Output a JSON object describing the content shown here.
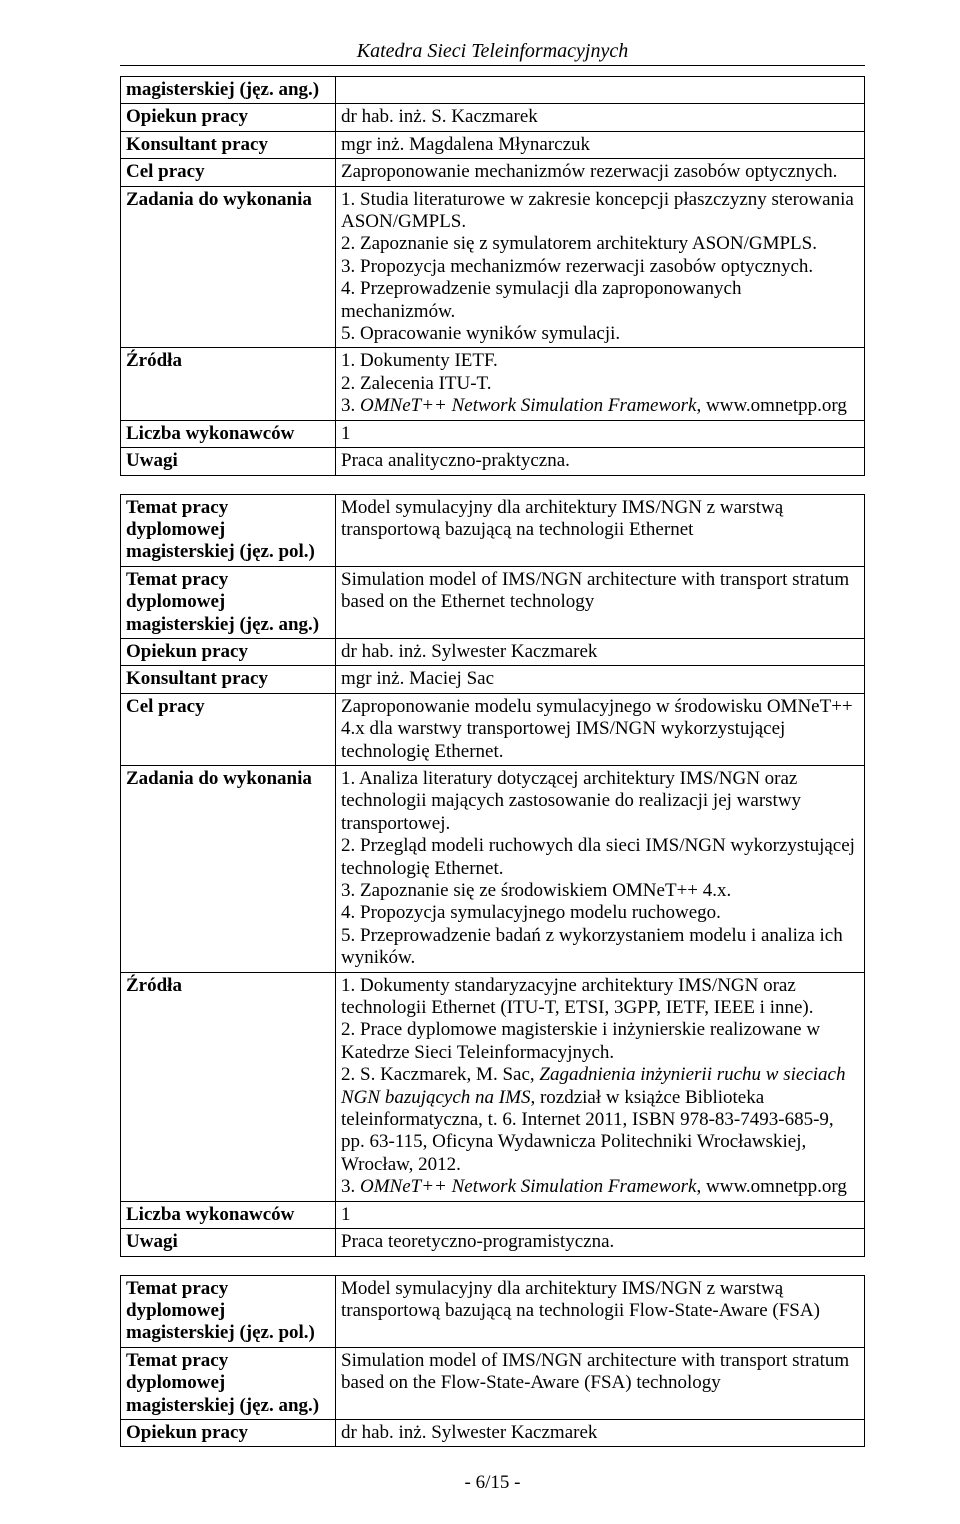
{
  "header": {
    "title": "Katedra Sieci Teleinformacyjnych"
  },
  "footer": {
    "pagenum": "- 6/15 -"
  },
  "table1": {
    "rows": [
      {
        "label": "magisterskiej (jęz. ang.)",
        "value": ""
      },
      {
        "label": "Opiekun pracy",
        "value": "dr hab. inż. S. Kaczmarek"
      },
      {
        "label": "Konsultant pracy",
        "value": "mgr inż. Magdalena Młynarczuk"
      },
      {
        "label": "Cel pracy",
        "value_html": "Zaproponowanie mechanizmów rezerwacji zasobów optycznych."
      },
      {
        "label": "Zadania do wykonania",
        "value_html": "1. Studia literaturowe w zakresie koncepcji płaszczyzny sterowania ASON/GMPLS.<br>2. Zapoznanie się z symulatorem architektury ASON/GMPLS.<br>3. Propozycja mechanizmów rezerwacji zasobów optycznych.<br>4. Przeprowadzenie symulacji dla zaproponowanych mechanizmów.<br>5. Opracowanie wyników symulacji."
      },
      {
        "label": "Źródła",
        "value_html": "1. Dokumenty IETF.<br>2. Zalecenia ITU-T.<br>3. <span class=\"italic\">OMNeT++ Network Simulation Framework</span>, www.omnetpp.org"
      },
      {
        "label": "Liczba wykonawców",
        "value": "1"
      },
      {
        "label": "Uwagi",
        "value": "Praca analityczno-praktyczna."
      }
    ]
  },
  "table2": {
    "rows": [
      {
        "label": "Temat pracy dyplomowej magisterskiej (jęz. pol.)",
        "value_html": "Model symulacyjny dla architektury IMS/NGN z warstwą transportową bazującą na technologii Ethernet"
      },
      {
        "label": "Temat pracy dyplomowej magisterskiej (jęz. ang.)",
        "value_html": "Simulation model of IMS/NGN architecture with transport stratum based on the Ethernet technology"
      },
      {
        "label": "Opiekun pracy",
        "value": "dr hab. inż. Sylwester Kaczmarek"
      },
      {
        "label": "Konsultant pracy",
        "value": "mgr inż. Maciej Sac"
      },
      {
        "label": "Cel pracy",
        "value_html": "Zaproponowanie modelu symulacyjnego w środowisku OMNeT++ 4.x dla warstwy transportowej IMS/NGN wykorzystującej technologię Ethernet."
      },
      {
        "label": "Zadania do wykonania",
        "value_html": "1. Analiza literatury dotyczącej architektury IMS/NGN oraz technologii mających zastosowanie do realizacji jej warstwy transportowej.<br>2. Przegląd modeli ruchowych dla sieci IMS/NGN wykorzystującej technologię Ethernet.<br>3. Zapoznanie się ze środowiskiem OMNeT++ 4.x.<br>4. Propozycja symulacyjnego modelu ruchowego.<br>5. Przeprowadzenie badań z wykorzystaniem modelu i analiza ich wyników."
      },
      {
        "label": "Źródła",
        "value_html": "1. Dokumenty standaryzacyjne architektury IMS/NGN oraz technologii Ethernet (ITU-T, ETSI, 3GPP, IETF, IEEE i inne).<br>2. Prace dyplomowe magisterskie i inżynierskie realizowane w Katedrze Sieci Teleinformacyjnych.<br>2. S. Kaczmarek, M. Sac, <span class=\"italic\">Zagadnienia inżynierii ruchu w sieciach NGN bazujących na IMS</span>, rozdział w książce Biblioteka teleinformatyczna, t. 6. Internet 2011, ISBN 978-83-7493-685-9, pp. 63-115, Oficyna Wydawnicza Politechniki Wrocławskiej, Wrocław, 2012.<br>3. <span class=\"italic\">OMNeT++ Network Simulation Framework</span>, www.omnetpp.org"
      },
      {
        "label": "Liczba wykonawców",
        "value": "1"
      },
      {
        "label": "Uwagi",
        "value": "Praca teoretyczno-programistyczna."
      }
    ]
  },
  "table3": {
    "rows": [
      {
        "label": "Temat pracy dyplomowej magisterskiej (jęz. pol.)",
        "value_html": "Model symulacyjny dla architektury IMS/NGN z warstwą transportową bazującą na technologii Flow-State-Aware (FSA)"
      },
      {
        "label": "Temat pracy dyplomowej magisterskiej (jęz. ang.)",
        "value_html": "Simulation model of IMS/NGN architecture with transport stratum based on the Flow-State-Aware (FSA) technology"
      },
      {
        "label": "Opiekun pracy",
        "value": "dr hab. inż. Sylwester Kaczmarek"
      }
    ]
  }
}
